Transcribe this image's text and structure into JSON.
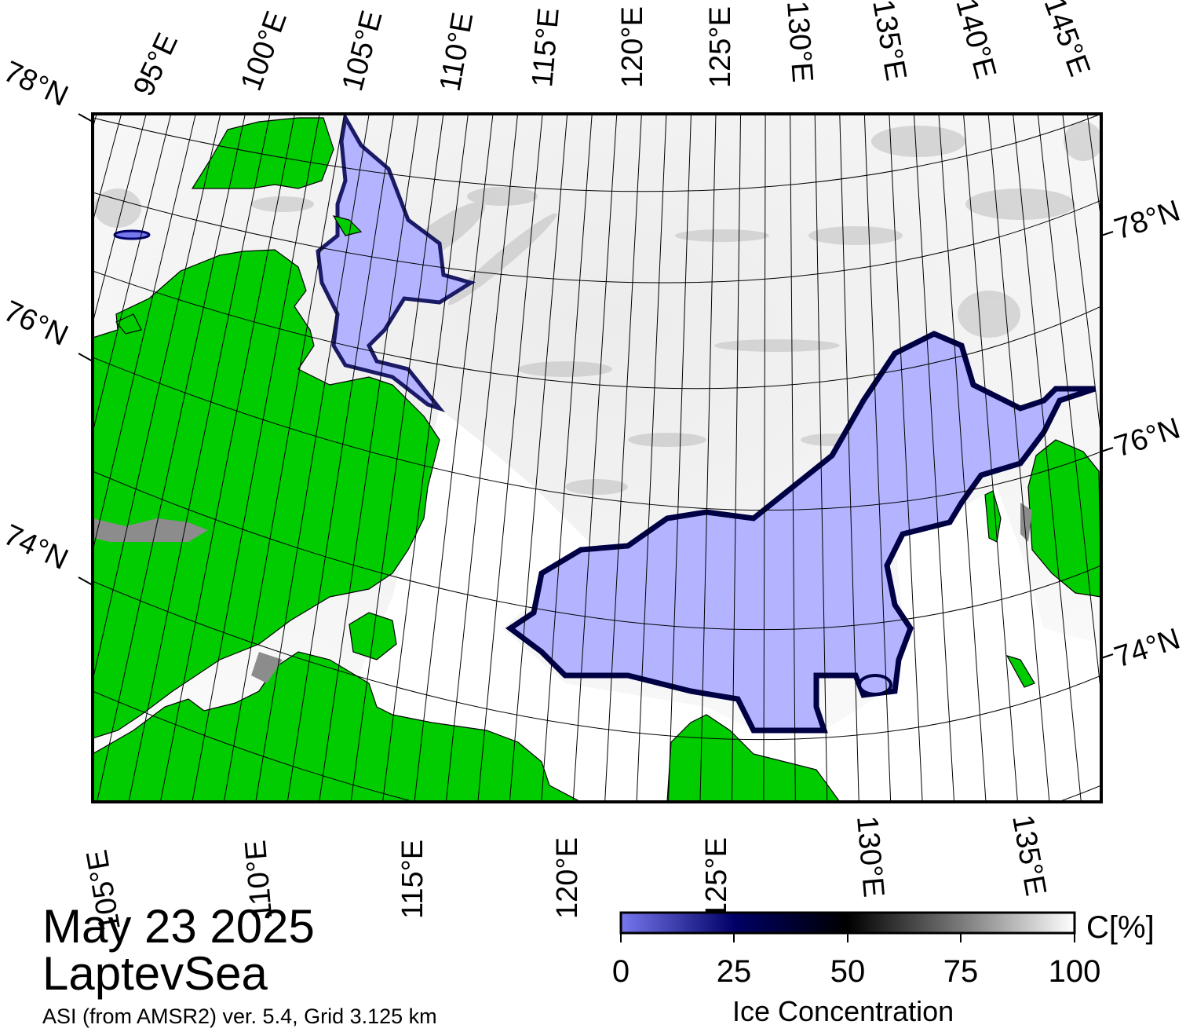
{
  "map": {
    "top_lon_labels": [
      "95°E",
      "100°E",
      "105°E",
      "110°E",
      "115°E",
      "120°E",
      "125°E",
      "130°E",
      "135°E",
      "140°E",
      "145°E"
    ],
    "bottom_lon_labels": [
      "105°E",
      "110°E",
      "115°E",
      "120°E",
      "125°E",
      "130°E",
      "135°E"
    ],
    "left_lat_labels": [
      "78°N",
      "76°N",
      "74°N"
    ],
    "right_lat_labels": [
      "78°N",
      "76°N",
      "74°N"
    ],
    "colors": {
      "land": "#00cc00",
      "open_water": "#ffffff",
      "low_concentration": "#b3b3ff",
      "mid_concentration": "#000066",
      "coast_grey": "#8c8c8c"
    }
  },
  "title": {
    "date": "May 23 2025",
    "region": "LaptevSea",
    "source": "ASI (from AMSR2) ver. 5.4,  Grid 3.125 km"
  },
  "legend": {
    "unit": "C[%]",
    "title": "Ice Concentration",
    "ticks": [
      "0",
      "25",
      "50",
      "75",
      "100"
    ]
  }
}
